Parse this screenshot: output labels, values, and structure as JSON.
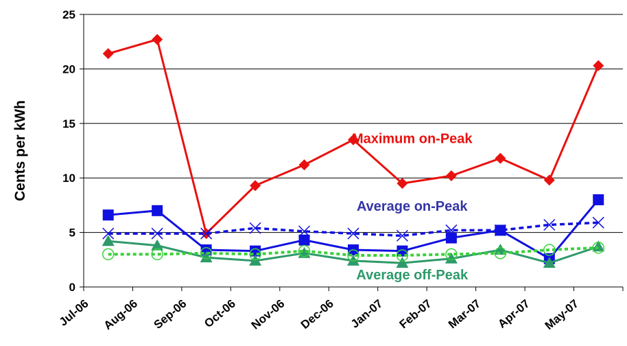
{
  "chart_data": {
    "type": "line",
    "ylabel": "Cents per kWh",
    "xlabel": "",
    "title": "",
    "ylim": [
      0,
      25
    ],
    "y_ticks": [
      "0",
      "5",
      "10",
      "15",
      "20",
      "25"
    ],
    "categories": [
      "Jul-06",
      "Aug-06",
      "Sep-06",
      "Oct-06",
      "Nov-06",
      "Dec-06",
      "Jan-07",
      "Feb-07",
      "Mar-07",
      "Apr-07",
      "May-07"
    ],
    "grid": "horizontal",
    "series": [
      {
        "key": "max_on_peak",
        "color": "#e8110f",
        "marker": "diamond",
        "line": "solid",
        "values": [
          21.4,
          22.7,
          4.9,
          9.3,
          11.2,
          13.5,
          9.5,
          10.2,
          11.8,
          9.8,
          20.3
        ]
      },
      {
        "key": "avg_on_peak_a",
        "color": "#1010e0",
        "marker": "square",
        "line": "solid",
        "values": [
          6.6,
          7.0,
          3.4,
          3.3,
          4.3,
          3.4,
          3.3,
          4.5,
          5.2,
          2.6,
          8.0
        ]
      },
      {
        "key": "avg_on_peak_b",
        "color": "#1010e0",
        "marker": "x",
        "line": "dashed",
        "values": [
          4.9,
          4.9,
          4.9,
          5.4,
          5.1,
          4.9,
          4.7,
          5.2,
          5.2,
          5.7,
          5.9
        ]
      },
      {
        "key": "avg_off_peak_a",
        "color": "#2e9a6a",
        "marker": "triangle",
        "line": "solid",
        "values": [
          4.2,
          3.8,
          2.7,
          2.4,
          3.1,
          2.4,
          2.2,
          2.6,
          3.4,
          2.2,
          3.7
        ]
      },
      {
        "key": "avg_off_peak_b",
        "color": "#3ad13a",
        "marker": "circle",
        "line": "dotted",
        "values": [
          3.0,
          3.0,
          3.1,
          3.0,
          3.3,
          2.9,
          2.9,
          3.0,
          3.1,
          3.4,
          3.6
        ]
      }
    ],
    "annotations": [
      {
        "text": "Maximum on-Peak",
        "color": "#e8110f",
        "x": 6.7,
        "y": 13.2
      },
      {
        "text": "Average on-Peak",
        "color": "#3535a5",
        "x": 6.7,
        "y": 7.0
      },
      {
        "text": "Average off-Peak",
        "color": "#2e9a6a",
        "x": 6.7,
        "y": 0.7
      }
    ]
  }
}
